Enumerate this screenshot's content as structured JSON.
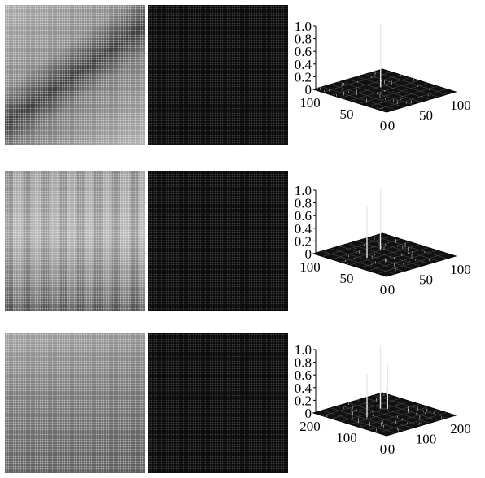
{
  "chart_data": [
    {
      "type": "surface",
      "zticks": [
        "0",
        "0.2",
        "0.4",
        "0.6",
        "0.8",
        "1.0"
      ],
      "x_ticks": [
        "0",
        "50",
        "100"
      ],
      "y_ticks": [
        "0",
        "50",
        "100"
      ],
      "xlim": [
        0,
        100
      ],
      "ylim": [
        0,
        100
      ],
      "zlim": [
        0,
        1.0
      ],
      "peaks": [
        {
          "x": 55,
          "y": 60,
          "z": 1.0
        }
      ]
    },
    {
      "type": "surface",
      "zticks": [
        "0",
        "0.2",
        "0.4",
        "0.6",
        "0.8",
        "1.0"
      ],
      "x_ticks": [
        "0",
        "50",
        "100"
      ],
      "y_ticks": [
        "0",
        "50",
        "100"
      ],
      "xlim": [
        0,
        100
      ],
      "ylim": [
        0,
        100
      ],
      "zlim": [
        0,
        1.0
      ],
      "peaks": [
        {
          "x": 30,
          "y": 55,
          "z": 0.8
        },
        {
          "x": 60,
          "y": 65,
          "z": 0.95
        }
      ]
    },
    {
      "type": "surface",
      "zticks": [
        "0",
        "0.2",
        "0.4",
        "0.6",
        "0.8",
        "1.0"
      ],
      "x_ticks": [
        "0",
        "100",
        "200"
      ],
      "y_ticks": [
        "0",
        "100",
        "200"
      ],
      "xlim": [
        0,
        200
      ],
      "ylim": [
        0,
        200
      ],
      "zlim": [
        0,
        1.0
      ],
      "peaks": [
        {
          "x": 60,
          "y": 110,
          "z": 0.68
        },
        {
          "x": 120,
          "y": 130,
          "z": 1.0
        },
        {
          "x": 130,
          "y": 120,
          "z": 0.72
        }
      ]
    }
  ]
}
